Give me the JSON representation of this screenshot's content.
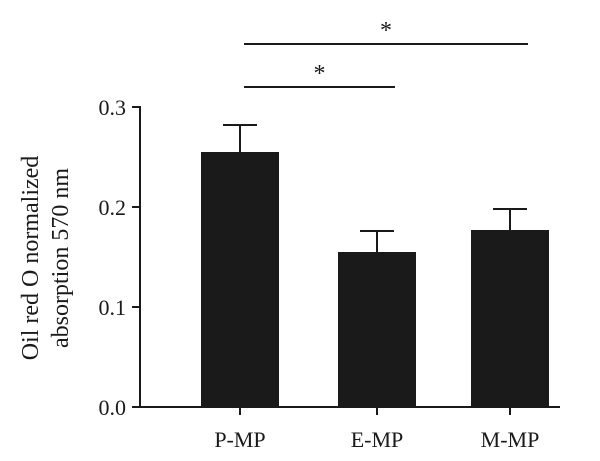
{
  "chart_data": {
    "type": "bar",
    "categories": [
      "P-MP",
      "E-MP",
      "M-MP"
    ],
    "values": [
      0.255,
      0.155,
      0.177
    ],
    "error": [
      0.027,
      0.021,
      0.021
    ],
    "ylabel_lines": [
      "Oil red O normalized",
      "absorption 570 nm"
    ],
    "ylim": [
      0,
      0.3
    ],
    "yticks": [
      "0.0",
      "0.1",
      "0.2",
      "0.3"
    ],
    "grid": false,
    "legend": "none",
    "bar_color": "#1a1a1a",
    "significance": [
      {
        "from": 0,
        "to": 1,
        "label": "*"
      },
      {
        "from": 0,
        "to": 2,
        "label": "*"
      }
    ]
  }
}
